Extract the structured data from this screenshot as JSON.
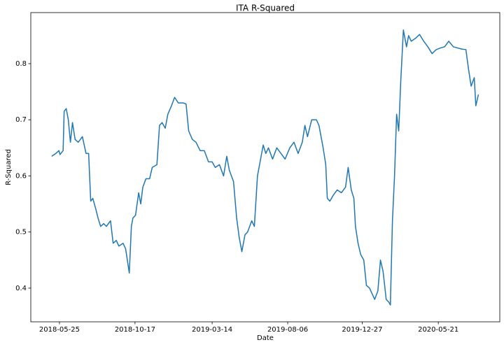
{
  "chart_data": {
    "type": "line",
    "title": "ITA R-Squared",
    "x_label": "Date",
    "y_label": "R-Squared",
    "color": "#1f77b4",
    "x": [
      "2018-05-10",
      "2018-05-18",
      "2018-05-24",
      "2018-05-26",
      "2018-06-01",
      "2018-06-03",
      "2018-06-07",
      "2018-06-11",
      "2018-06-15",
      "2018-06-19",
      "2018-06-24",
      "2018-06-30",
      "2018-07-08",
      "2018-07-15",
      "2018-07-20",
      "2018-07-24",
      "2018-07-28",
      "2018-08-03",
      "2018-08-07",
      "2018-08-12",
      "2018-08-18",
      "2018-08-23",
      "2018-08-31",
      "2018-09-05",
      "2018-09-11",
      "2018-09-16",
      "2018-09-24",
      "2018-09-29",
      "2018-10-06",
      "2018-10-10",
      "2018-10-13",
      "2018-10-18",
      "2018-10-24",
      "2018-10-28",
      "2018-11-01",
      "2018-11-07",
      "2018-11-14",
      "2018-11-19",
      "2018-11-28",
      "2018-12-03",
      "2018-12-08",
      "2018-12-14",
      "2018-12-19",
      "2018-12-26",
      "2019-01-01",
      "2019-01-08",
      "2019-01-18",
      "2019-01-23",
      "2019-01-28",
      "2019-02-04",
      "2019-02-11",
      "2019-02-19",
      "2019-02-27",
      "2019-03-07",
      "2019-03-14",
      "2019-03-20",
      "2019-03-28",
      "2019-04-05",
      "2019-04-11",
      "2019-04-16",
      "2019-04-24",
      "2019-04-30",
      "2019-05-05",
      "2019-05-10",
      "2019-05-16",
      "2019-05-21",
      "2019-05-29",
      "2019-06-03",
      "2019-06-09",
      "2019-06-14",
      "2019-06-20",
      "2019-06-25",
      "2019-06-30",
      "2019-07-08",
      "2019-07-16",
      "2019-07-24",
      "2019-08-01",
      "2019-08-10",
      "2019-08-18",
      "2019-08-26",
      "2019-09-03",
      "2019-09-08",
      "2019-09-13",
      "2019-09-21",
      "2019-09-30",
      "2019-10-05",
      "2019-10-13",
      "2019-10-18",
      "2019-10-21",
      "2019-10-26",
      "2019-11-01",
      "2019-11-09",
      "2019-11-17",
      "2019-11-25",
      "2019-11-30",
      "2019-12-06",
      "2019-12-11",
      "2019-12-14",
      "2019-12-19",
      "2019-12-24",
      "2019-12-30",
      "2020-01-04",
      "2020-01-10",
      "2020-01-15",
      "2020-01-20",
      "2020-01-26",
      "2020-01-31",
      "2020-02-05",
      "2020-02-11",
      "2020-02-16",
      "2020-02-19",
      "2020-02-23",
      "2020-02-27",
      "2020-03-02",
      "2020-03-06",
      "2020-03-10",
      "2020-03-15",
      "2020-03-21",
      "2020-03-25",
      "2020-03-30",
      "2020-04-07",
      "2020-04-15",
      "2020-04-23",
      "2020-05-01",
      "2020-05-09",
      "2020-05-17",
      "2020-05-25",
      "2020-06-02",
      "2020-06-10",
      "2020-06-19",
      "2020-06-27",
      "2020-07-05",
      "2020-07-13",
      "2020-07-18",
      "2020-07-23",
      "2020-07-29",
      "2020-08-01",
      "2020-08-06"
    ],
    "values": [
      0.635,
      0.64,
      0.645,
      0.638,
      0.645,
      0.715,
      0.72,
      0.7,
      0.66,
      0.695,
      0.665,
      0.66,
      0.67,
      0.64,
      0.64,
      0.555,
      0.56,
      0.54,
      0.525,
      0.51,
      0.515,
      0.51,
      0.52,
      0.48,
      0.485,
      0.475,
      0.48,
      0.47,
      0.427,
      0.51,
      0.525,
      0.53,
      0.57,
      0.55,
      0.58,
      0.595,
      0.595,
      0.615,
      0.62,
      0.69,
      0.695,
      0.685,
      0.71,
      0.725,
      0.74,
      0.73,
      0.73,
      0.728,
      0.68,
      0.665,
      0.66,
      0.645,
      0.645,
      0.625,
      0.625,
      0.615,
      0.62,
      0.6,
      0.635,
      0.61,
      0.59,
      0.525,
      0.49,
      0.465,
      0.495,
      0.5,
      0.52,
      0.51,
      0.6,
      0.625,
      0.655,
      0.64,
      0.65,
      0.63,
      0.65,
      0.64,
      0.63,
      0.65,
      0.66,
      0.64,
      0.66,
      0.69,
      0.67,
      0.7,
      0.7,
      0.69,
      0.65,
      0.62,
      0.56,
      0.555,
      0.565,
      0.575,
      0.57,
      0.58,
      0.615,
      0.575,
      0.56,
      0.51,
      0.48,
      0.46,
      0.45,
      0.405,
      0.4,
      0.39,
      0.38,
      0.395,
      0.45,
      0.43,
      0.38,
      0.375,
      0.37,
      0.52,
      0.6,
      0.71,
      0.68,
      0.77,
      0.86,
      0.83,
      0.85,
      0.84,
      0.845,
      0.852,
      0.84,
      0.83,
      0.818,
      0.825,
      0.828,
      0.83,
      0.84,
      0.83,
      0.828,
      0.826,
      0.825,
      0.79,
      0.76,
      0.775,
      0.725,
      0.745
    ],
    "xlim": [
      "2018-03-31",
      "2020-09-16"
    ],
    "xticks": [
      "2018-05-25",
      "2018-10-17",
      "2019-03-14",
      "2019-08-06",
      "2019-12-27",
      "2020-05-21"
    ],
    "ylim": [
      0.34,
      0.891
    ],
    "yticks": [
      0.4,
      0.5,
      0.6,
      0.7,
      0.8
    ]
  }
}
